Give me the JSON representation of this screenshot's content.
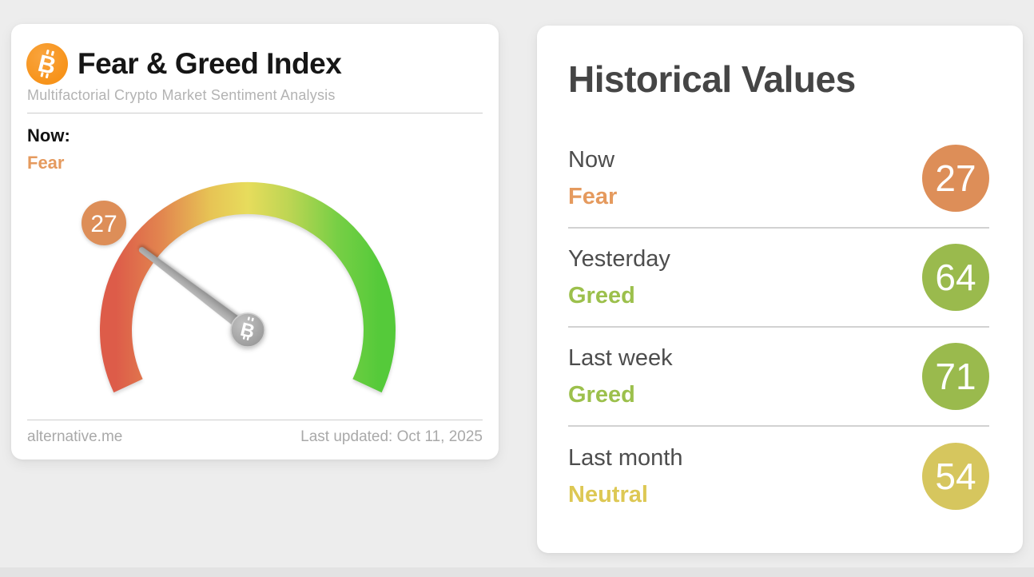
{
  "gauge_card": {
    "title": "Fear & Greed Index",
    "subtitle": "Multifactorial Crypto Market Sentiment Analysis",
    "now_label": "Now:",
    "now_classification": "Fear",
    "gauge_value": "27",
    "footer_source": "alternative.me",
    "footer_updated": "Last updated: Oct 11, 2025",
    "bitcoin_icon": "bitcoin-logo"
  },
  "historical_card": {
    "title": "Historical Values",
    "rows": [
      {
        "period": "Now",
        "classification": "Fear",
        "value": "27",
        "badge_color": "#dd8e58",
        "text_color": "#e59a5e"
      },
      {
        "period": "Yesterday",
        "classification": "Greed",
        "value": "64",
        "badge_color": "#9aba4d",
        "text_color": "#9cc04c"
      },
      {
        "period": "Last week",
        "classification": "Greed",
        "value": "71",
        "badge_color": "#9aba4d",
        "text_color": "#9cc04c"
      },
      {
        "period": "Last month",
        "classification": "Neutral",
        "value": "54",
        "badge_color": "#d6c65e",
        "text_color": "#ddc854"
      }
    ]
  },
  "colors": {
    "bitcoin_orange": "#f7931a",
    "fear_orange_text": "#e59a5e",
    "fear_orange_badge": "#dd8e58",
    "greed_green_text": "#9cc04c",
    "greed_green_badge": "#9aba4d",
    "neutral_yellow_text": "#ddc854",
    "neutral_yellow_badge": "#d6c65e",
    "gauge_gradient": [
      "#dd5c49",
      "#e2854f",
      "#e7c455",
      "#e7dc5c",
      "#bcd553",
      "#77cf45",
      "#55ca3a"
    ],
    "needle_gray": "#9e9e9e",
    "background": "#ededed"
  },
  "chart_data": {
    "type": "gauge",
    "title": "Fear & Greed Index",
    "value": 27,
    "min": 0,
    "max": 100,
    "classification": "Fear",
    "arc_start_deg": 205,
    "arc_sweep_deg": 230,
    "historical": [
      {
        "period": "Now",
        "classification": "Fear",
        "value": 27
      },
      {
        "period": "Yesterday",
        "classification": "Greed",
        "value": 64
      },
      {
        "period": "Last week",
        "classification": "Greed",
        "value": 71
      },
      {
        "period": "Last month",
        "classification": "Neutral",
        "value": 54
      }
    ]
  }
}
